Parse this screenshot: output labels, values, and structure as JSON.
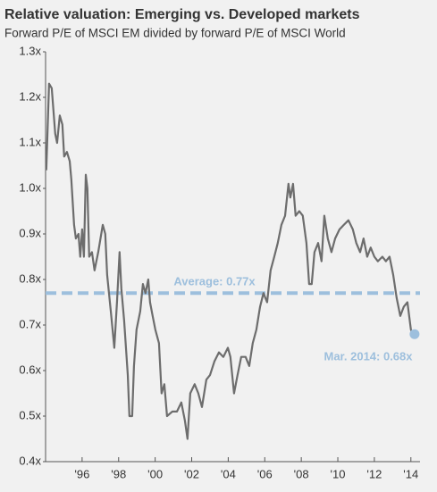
{
  "chart_data": {
    "type": "line",
    "title": "Relative valuation: Emerging vs. Developed markets",
    "subtitle": "Forward P/E of MSCI EM divided by forward P/E of MSCI World",
    "x": [
      1994.04,
      1994.19,
      1994.34,
      1994.53,
      1994.63,
      1994.78,
      1994.92,
      1995.02,
      1995.17,
      1995.32,
      1995.41,
      1995.56,
      1995.66,
      1995.8,
      1995.9,
      1996.0,
      1996.1,
      1996.2,
      1996.29,
      1996.39,
      1996.54,
      1996.68,
      1996.88,
      1997.13,
      1997.27,
      1997.37,
      1997.57,
      1997.76,
      1997.91,
      1998.05,
      1998.15,
      1998.3,
      1998.5,
      1998.59,
      1998.74,
      1998.84,
      1998.98,
      1999.18,
      1999.33,
      1999.47,
      1999.62,
      1999.72,
      1999.86,
      2000.01,
      2000.21,
      2000.35,
      2000.5,
      2000.65,
      2000.94,
      2001.19,
      2001.43,
      2001.63,
      2001.77,
      2001.92,
      2002.16,
      2002.36,
      2002.56,
      2002.8,
      2003.0,
      2003.24,
      2003.49,
      2003.73,
      2003.98,
      2004.12,
      2004.32,
      2004.51,
      2004.71,
      2004.95,
      2005.15,
      2005.34,
      2005.54,
      2005.74,
      2005.93,
      2006.13,
      2006.32,
      2006.52,
      2006.71,
      2006.91,
      2007.11,
      2007.3,
      2007.4,
      2007.55,
      2007.69,
      2007.89,
      2008.08,
      2008.28,
      2008.43,
      2008.57,
      2008.72,
      2008.92,
      2009.11,
      2009.26,
      2009.45,
      2009.65,
      2009.85,
      2010.09,
      2010.33,
      2010.58,
      2010.82,
      2011.01,
      2011.22,
      2011.41,
      2011.61,
      2011.8,
      2012.0,
      2012.19,
      2012.44,
      2012.63,
      2012.83,
      2013.03,
      2013.22,
      2013.42,
      2013.61,
      2013.81,
      2014.0,
      2014.1
    ],
    "series": [
      {
        "color": "#6d6d6d",
        "values": [
          1.04,
          1.23,
          1.22,
          1.12,
          1.1,
          1.16,
          1.14,
          1.07,
          1.08,
          1.06,
          1.02,
          0.92,
          0.89,
          0.9,
          0.85,
          0.91,
          0.85,
          1.03,
          1.0,
          0.85,
          0.86,
          0.82,
          0.86,
          0.92,
          0.9,
          0.81,
          0.73,
          0.65,
          0.75,
          0.86,
          0.78,
          0.71,
          0.59,
          0.5,
          0.5,
          0.61,
          0.69,
          0.73,
          0.79,
          0.77,
          0.8,
          0.75,
          0.72,
          0.69,
          0.66,
          0.55,
          0.57,
          0.5,
          0.51,
          0.51,
          0.53,
          0.49,
          0.45,
          0.55,
          0.57,
          0.55,
          0.52,
          0.58,
          0.59,
          0.62,
          0.64,
          0.63,
          0.65,
          0.63,
          0.55,
          0.59,
          0.63,
          0.63,
          0.61,
          0.66,
          0.69,
          0.74,
          0.77,
          0.75,
          0.82,
          0.85,
          0.88,
          0.92,
          0.94,
          1.01,
          0.98,
          1.01,
          0.94,
          0.95,
          0.94,
          0.88,
          0.79,
          0.79,
          0.86,
          0.88,
          0.84,
          0.94,
          0.89,
          0.86,
          0.89,
          0.91,
          0.92,
          0.93,
          0.91,
          0.88,
          0.86,
          0.89,
          0.85,
          0.87,
          0.85,
          0.84,
          0.85,
          0.84,
          0.85,
          0.81,
          0.76,
          0.72,
          0.74,
          0.75,
          0.69,
          0.68
        ]
      }
    ],
    "average": {
      "value": 0.77,
      "label": "Average: 0.77x",
      "color": "#9dbfdd"
    },
    "latest": {
      "x": 2014.2,
      "value": 0.68,
      "label": "Mar. 2014: 0.68x",
      "color": "#9dbfdd"
    },
    "xlim": [
      1994,
      2014.5
    ],
    "ylim": [
      0.4,
      1.3
    ],
    "xticks": [
      {
        "value": 1996,
        "label": "'96"
      },
      {
        "value": 1998,
        "label": "'98"
      },
      {
        "value": 2000,
        "label": "'00"
      },
      {
        "value": 2002,
        "label": "'02"
      },
      {
        "value": 2004,
        "label": "'04"
      },
      {
        "value": 2006,
        "label": "'06"
      },
      {
        "value": 2008,
        "label": "'08"
      },
      {
        "value": 2010,
        "label": "'10"
      },
      {
        "value": 2012,
        "label": "'12"
      },
      {
        "value": 2014,
        "label": "'14"
      }
    ],
    "yticks": [
      {
        "value": 0.4,
        "label": "0.4x"
      },
      {
        "value": 0.5,
        "label": "0.5x"
      },
      {
        "value": 0.6,
        "label": "0.6x"
      },
      {
        "value": 0.7,
        "label": "0.7x"
      },
      {
        "value": 0.8,
        "label": "0.8x"
      },
      {
        "value": 0.9,
        "label": "0.9x"
      },
      {
        "value": 1.0,
        "label": "1.0x"
      },
      {
        "value": 1.1,
        "label": "1.1x"
      },
      {
        "value": 1.2,
        "label": "1.2x"
      },
      {
        "value": 1.3,
        "label": "1.3x"
      }
    ]
  }
}
